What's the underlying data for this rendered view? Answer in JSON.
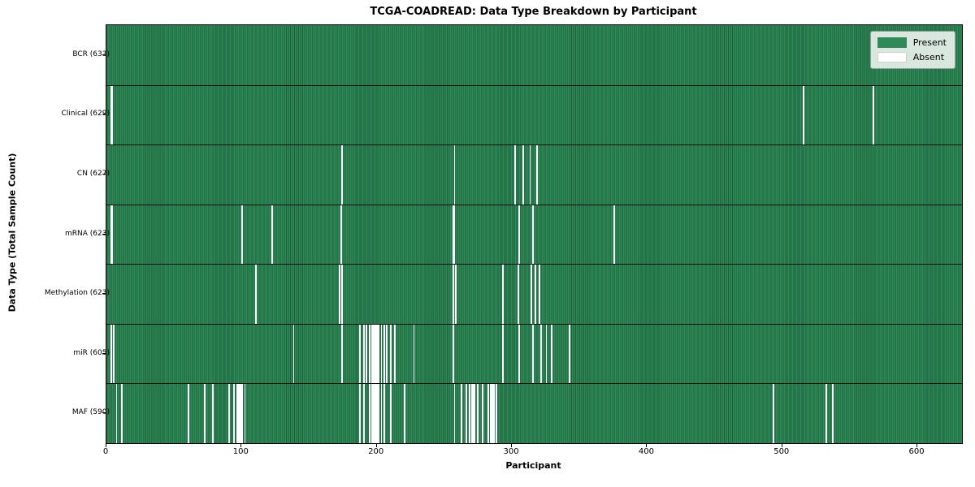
{
  "chart_data": {
    "type": "heatmap",
    "title": "TCGA-COADREAD: Data Type Breakdown by Participant",
    "xlabel": "Participant",
    "ylabel": "Data Type (Total Sample Count)",
    "total_participants": 633,
    "xlim": [
      0,
      633
    ],
    "x_ticks": [
      0,
      100,
      200,
      300,
      400,
      500,
      600
    ],
    "grid": false,
    "legend_position": "upper right",
    "legend": [
      {
        "label": "Present",
        "color": "#2e8b57"
      },
      {
        "label": "Absent",
        "color": "#ffffff"
      }
    ],
    "colors": {
      "present": "#2e8b57",
      "present_edge": "#1f5e3b",
      "absent": "#ffffff",
      "row_divider": "#0d0d0d",
      "axes_border": "#000000"
    },
    "rows": [
      {
        "label": "BCR (633)",
        "data_type": "BCR",
        "count": 633,
        "absent_participants": []
      },
      {
        "label": "Clinical (629)",
        "data_type": "Clinical",
        "count": 629,
        "absent_participants": [
          3,
          4,
          515,
          567
        ]
      },
      {
        "label": "CN (627)",
        "data_type": "CN",
        "count": 627,
        "absent_participants": [
          174,
          257,
          302,
          308,
          313,
          318
        ]
      },
      {
        "label": "mRNA (623)",
        "data_type": "mRNA",
        "count": 623,
        "absent_participants": [
          3,
          4,
          100,
          122,
          173,
          256,
          257,
          305,
          315,
          375
        ]
      },
      {
        "label": "Methylation (623)",
        "data_type": "Methylation",
        "count": 623,
        "absent_participants": [
          110,
          172,
          174,
          256,
          258,
          293,
          304,
          314,
          317,
          320
        ]
      },
      {
        "label": "miR (605)",
        "data_type": "miR",
        "count": 605,
        "absent_participants": [
          3,
          5,
          138,
          174,
          187,
          190,
          192,
          194,
          196,
          197,
          198,
          199,
          200,
          201,
          203,
          205,
          207,
          210,
          213,
          227,
          256,
          293,
          305,
          315,
          321,
          325,
          329,
          342
        ]
      },
      {
        "label": "MAF (590)",
        "data_type": "MAF",
        "count": 590,
        "absent_participants": [
          7,
          11,
          60,
          72,
          78,
          90,
          94,
          96,
          97,
          98,
          99,
          100,
          102,
          187,
          190,
          194,
          196,
          197,
          198,
          199,
          200,
          201,
          203,
          205,
          210,
          220,
          257,
          262,
          266,
          268,
          270,
          271,
          272,
          274,
          278,
          282,
          284,
          285,
          286,
          288,
          493,
          532,
          537
        ]
      }
    ]
  }
}
